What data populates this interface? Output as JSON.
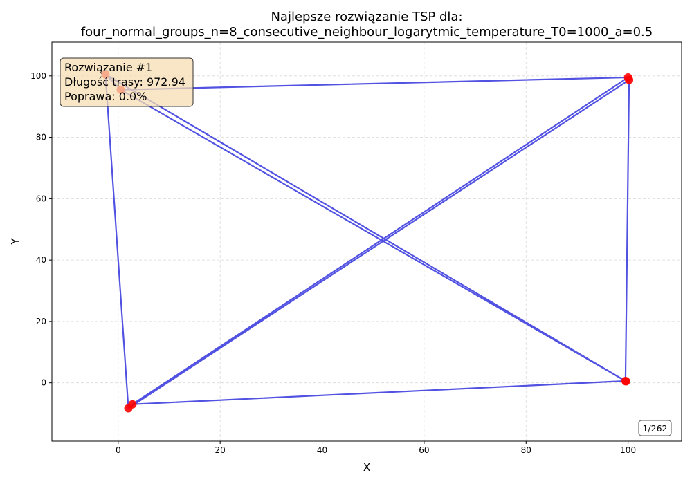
{
  "chart_data": {
    "type": "scatter",
    "title_line1": "Najlepsze rozwiązanie TSP dla:",
    "title_line2": "four_normal_groups_n=8_consecutive_neighbour_logarytmic_temperature_T0=1000_a=0.5",
    "xlabel": "X",
    "ylabel": "Y",
    "xlim": [
      -13,
      110.5
    ],
    "ylim": [
      -19,
      111
    ],
    "xticks": [
      0,
      20,
      40,
      60,
      80,
      100
    ],
    "yticks": [
      0,
      20,
      40,
      60,
      80,
      100
    ],
    "grid": true,
    "route_color": "#3333dd",
    "point_color": "#ff0000",
    "points": [
      {
        "x": -2.5,
        "y": 100.5
      },
      {
        "x": 0.5,
        "y": 95.5
      },
      {
        "x": 100,
        "y": 99.5
      },
      {
        "x": 100.2,
        "y": 98.7
      },
      {
        "x": 99.5,
        "y": 0.6
      },
      {
        "x": 99.6,
        "y": 0.5
      },
      {
        "x": 2.8,
        "y": -7
      },
      {
        "x": 2,
        "y": -8.3
      }
    ],
    "route": [
      {
        "x": -2.5,
        "y": 100.5
      },
      {
        "x": 0.5,
        "y": 95.5
      },
      {
        "x": 100,
        "y": 99.5
      },
      {
        "x": 100.2,
        "y": 98.7
      },
      {
        "x": 99.5,
        "y": 0.6
      },
      {
        "x": 2.8,
        "y": -7
      },
      {
        "x": 100,
        "y": 99.5
      },
      {
        "x": 100.2,
        "y": 98.7
      },
      {
        "x": 2,
        "y": -8.3
      },
      {
        "x": -2.5,
        "y": 100.5
      },
      {
        "x": 99.6,
        "y": 0.5
      },
      {
        "x": 0.5,
        "y": 95.5
      }
    ]
  },
  "info_box": {
    "line1": "Rozwiązanie #1",
    "line2": "Długość trasy: 972.94",
    "line3": "Poprawa: 0.0%",
    "bg_color": "#f5deb3"
  },
  "counter": "1/262"
}
